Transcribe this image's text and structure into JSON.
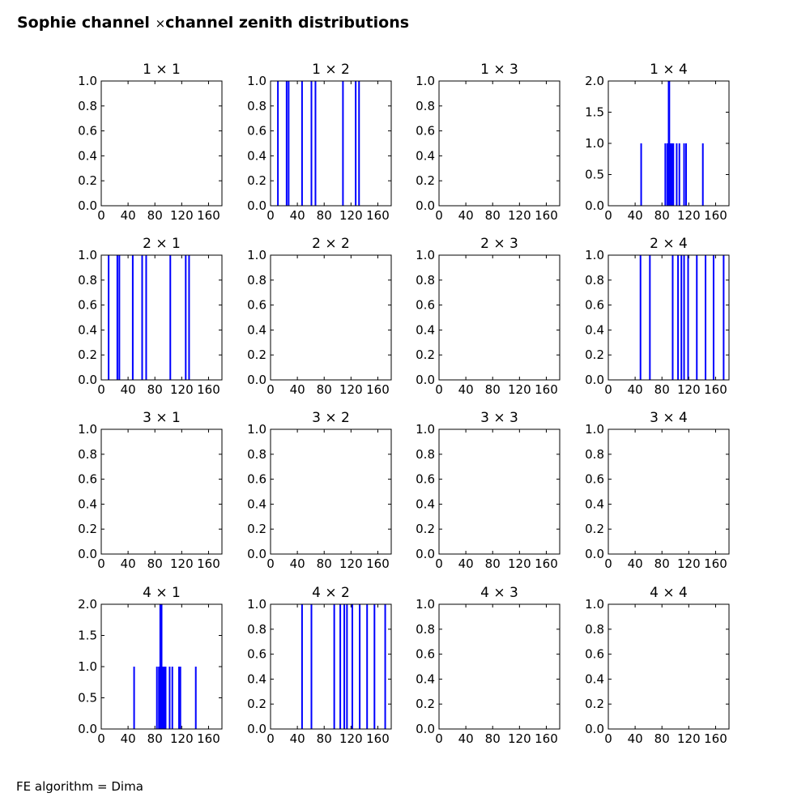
{
  "figure": {
    "title_left": "Sophie channel",
    "title_times": "×",
    "title_right": "channel zenith distributions",
    "footnote": "FE algorithm = Dima"
  },
  "colors": {
    "series": "#0000ff",
    "axes": "#000000",
    "text": "#000000",
    "background": "#ffffff"
  },
  "chart_data": [
    {
      "type": "bar",
      "title": "1 × 1",
      "xlim": [
        0,
        180
      ],
      "ylim": [
        0,
        1.0
      ],
      "xticks": [
        "0",
        "40",
        "80",
        "120",
        "160"
      ],
      "yticks": [
        "0.0",
        "0.2",
        "0.4",
        "0.6",
        "0.8",
        "1.0"
      ],
      "x": [],
      "values": []
    },
    {
      "type": "bar",
      "title": "1 × 2",
      "xlim": [
        0,
        180
      ],
      "ylim": [
        0,
        1.0
      ],
      "xticks": [
        "0",
        "40",
        "80",
        "120",
        "160"
      ],
      "yticks": [
        "0.0",
        "0.2",
        "0.4",
        "0.6",
        "0.8",
        "1.0"
      ],
      "x": [
        11,
        24,
        27,
        47,
        61,
        67,
        108,
        127,
        132
      ],
      "values": [
        1,
        1,
        1,
        1,
        1,
        1,
        1,
        1,
        1
      ]
    },
    {
      "type": "bar",
      "title": "1 × 3",
      "xlim": [
        0,
        180
      ],
      "ylim": [
        0,
        1.0
      ],
      "xticks": [
        "0",
        "40",
        "80",
        "120",
        "160"
      ],
      "yticks": [
        "0.0",
        "0.2",
        "0.4",
        "0.6",
        "0.8",
        "1.0"
      ],
      "x": [],
      "values": []
    },
    {
      "type": "bar",
      "title": "1 × 4",
      "xlim": [
        0,
        180
      ],
      "ylim": [
        0,
        2.0
      ],
      "xticks": [
        "0",
        "40",
        "80",
        "120",
        "160"
      ],
      "yticks": [
        "0.0",
        "0.5",
        "1.0",
        "1.5",
        "2.0"
      ],
      "x": [
        49,
        85,
        88,
        90,
        91,
        93,
        95,
        97,
        102,
        106,
        113,
        116,
        141
      ],
      "values": [
        1,
        1,
        1,
        2,
        2,
        1,
        1,
        1,
        1,
        1,
        1,
        1,
        1
      ]
    },
    {
      "type": "bar",
      "title": "2 × 1",
      "xlim": [
        0,
        180
      ],
      "ylim": [
        0,
        1.0
      ],
      "xticks": [
        "0",
        "40",
        "80",
        "120",
        "160"
      ],
      "yticks": [
        "0.0",
        "0.2",
        "0.4",
        "0.6",
        "0.8",
        "1.0"
      ],
      "x": [
        11,
        24,
        27,
        47,
        61,
        67,
        103,
        126,
        131
      ],
      "values": [
        1,
        1,
        1,
        1,
        1,
        1,
        1,
        1,
        1
      ]
    },
    {
      "type": "bar",
      "title": "2 × 2",
      "xlim": [
        0,
        180
      ],
      "ylim": [
        0,
        1.0
      ],
      "xticks": [
        "0",
        "40",
        "80",
        "120",
        "160"
      ],
      "yticks": [
        "0.0",
        "0.2",
        "0.4",
        "0.6",
        "0.8",
        "1.0"
      ],
      "x": [],
      "values": []
    },
    {
      "type": "bar",
      "title": "2 × 3",
      "xlim": [
        0,
        180
      ],
      "ylim": [
        0,
        1.0
      ],
      "xticks": [
        "0",
        "40",
        "80",
        "120",
        "160"
      ],
      "yticks": [
        "0.0",
        "0.2",
        "0.4",
        "0.6",
        "0.8",
        "1.0"
      ],
      "x": [],
      "values": []
    },
    {
      "type": "bar",
      "title": "2 × 4",
      "xlim": [
        0,
        180
      ],
      "ylim": [
        0,
        1.0
      ],
      "xticks": [
        "0",
        "40",
        "80",
        "120",
        "160"
      ],
      "yticks": [
        "0.0",
        "0.2",
        "0.4",
        "0.6",
        "0.8",
        "1.0"
      ],
      "x": [
        48,
        62,
        96,
        104,
        109,
        113,
        119,
        132,
        145,
        157,
        172
      ],
      "values": [
        1,
        1,
        1,
        1,
        1,
        1,
        1,
        1,
        1,
        1,
        1
      ]
    },
    {
      "type": "bar",
      "title": "3 × 1",
      "xlim": [
        0,
        180
      ],
      "ylim": [
        0,
        1.0
      ],
      "xticks": [
        "0",
        "40",
        "80",
        "120",
        "160"
      ],
      "yticks": [
        "0.0",
        "0.2",
        "0.4",
        "0.6",
        "0.8",
        "1.0"
      ],
      "x": [],
      "values": []
    },
    {
      "type": "bar",
      "title": "3 × 2",
      "xlim": [
        0,
        180
      ],
      "ylim": [
        0,
        1.0
      ],
      "xticks": [
        "0",
        "40",
        "80",
        "120",
        "160"
      ],
      "yticks": [
        "0.0",
        "0.2",
        "0.4",
        "0.6",
        "0.8",
        "1.0"
      ],
      "x": [],
      "values": []
    },
    {
      "type": "bar",
      "title": "3 × 3",
      "xlim": [
        0,
        180
      ],
      "ylim": [
        0,
        1.0
      ],
      "xticks": [
        "0",
        "40",
        "80",
        "120",
        "160"
      ],
      "yticks": [
        "0.0",
        "0.2",
        "0.4",
        "0.6",
        "0.8",
        "1.0"
      ],
      "x": [],
      "values": []
    },
    {
      "type": "bar",
      "title": "3 × 4",
      "xlim": [
        0,
        180
      ],
      "ylim": [
        0,
        1.0
      ],
      "xticks": [
        "0",
        "40",
        "80",
        "120",
        "160"
      ],
      "yticks": [
        "0.0",
        "0.2",
        "0.4",
        "0.6",
        "0.8",
        "1.0"
      ],
      "x": [],
      "values": []
    },
    {
      "type": "bar",
      "title": "4 × 1",
      "xlim": [
        0,
        180
      ],
      "ylim": [
        0,
        2.0
      ],
      "xticks": [
        "0",
        "40",
        "80",
        "120",
        "160"
      ],
      "yticks": [
        "0.0",
        "0.5",
        "1.0",
        "1.5",
        "2.0"
      ],
      "x": [
        49,
        83,
        86,
        88,
        90,
        92,
        94,
        96,
        102,
        106,
        116,
        118,
        141
      ],
      "values": [
        1,
        1,
        1,
        2,
        2,
        1,
        1,
        1,
        1,
        1,
        1,
        1,
        1
      ]
    },
    {
      "type": "bar",
      "title": "4 × 2",
      "xlim": [
        0,
        180
      ],
      "ylim": [
        0,
        1.0
      ],
      "xticks": [
        "0",
        "40",
        "80",
        "120",
        "160"
      ],
      "yticks": [
        "0.0",
        "0.2",
        "0.4",
        "0.6",
        "0.8",
        "1.0"
      ],
      "x": [
        47,
        61,
        95,
        104,
        110,
        114,
        122,
        133,
        144,
        155,
        171
      ],
      "values": [
        1,
        1,
        1,
        1,
        1,
        1,
        1,
        1,
        1,
        1,
        1
      ]
    },
    {
      "type": "bar",
      "title": "4 × 3",
      "xlim": [
        0,
        180
      ],
      "ylim": [
        0,
        1.0
      ],
      "xticks": [
        "0",
        "40",
        "80",
        "120",
        "160"
      ],
      "yticks": [
        "0.0",
        "0.2",
        "0.4",
        "0.6",
        "0.8",
        "1.0"
      ],
      "x": [],
      "values": []
    },
    {
      "type": "bar",
      "title": "4 × 4",
      "xlim": [
        0,
        180
      ],
      "ylim": [
        0,
        1.0
      ],
      "xticks": [
        "0",
        "40",
        "80",
        "120",
        "160"
      ],
      "yticks": [
        "0.0",
        "0.2",
        "0.4",
        "0.6",
        "0.8",
        "1.0"
      ],
      "x": [],
      "values": []
    }
  ]
}
